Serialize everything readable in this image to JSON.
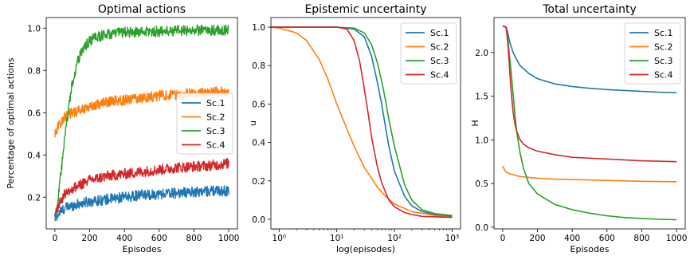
{
  "colors": {
    "Sc.1": "#1f77b4",
    "Sc.2": "#ff7f0e",
    "Sc.3": "#2ca02c",
    "Sc.4": "#d62728"
  },
  "chart_data": [
    {
      "type": "line",
      "title": "Optimal actions",
      "xlabel": "Episodes",
      "ylabel": "Percentage of optimal actions",
      "xlim": [
        -50,
        1050
      ],
      "ylim": [
        0.05,
        1.05
      ],
      "xticks": [
        0,
        200,
        400,
        600,
        800,
        1000
      ],
      "yticks": [
        0.2,
        0.4,
        0.6,
        0.8,
        1.0
      ],
      "xticklabels": [
        "0",
        "200",
        "400",
        "600",
        "800",
        "1000"
      ],
      "yticklabels": [
        "0.2",
        "0.4",
        "0.6",
        "0.8",
        "1.0"
      ],
      "legend": "center-right",
      "noisy": true,
      "series": [
        {
          "name": "Sc.1",
          "x": [
            0,
            10,
            30,
            60,
            100,
            200,
            300,
            400,
            500,
            600,
            700,
            800,
            900,
            1000
          ],
          "y": [
            0.1,
            0.11,
            0.13,
            0.15,
            0.16,
            0.18,
            0.19,
            0.2,
            0.21,
            0.215,
            0.22,
            0.225,
            0.23,
            0.23
          ]
        },
        {
          "name": "Sc.2",
          "x": [
            0,
            10,
            30,
            60,
            100,
            200,
            300,
            400,
            500,
            600,
            700,
            800,
            900,
            1000
          ],
          "y": [
            0.5,
            0.52,
            0.55,
            0.58,
            0.6,
            0.63,
            0.65,
            0.66,
            0.67,
            0.68,
            0.685,
            0.69,
            0.695,
            0.7
          ]
        },
        {
          "name": "Sc.3",
          "x": [
            0,
            20,
            40,
            60,
            80,
            100,
            130,
            160,
            200,
            250,
            300,
            400,
            600,
            800,
            1000
          ],
          "y": [
            0.1,
            0.2,
            0.35,
            0.5,
            0.63,
            0.74,
            0.84,
            0.9,
            0.94,
            0.96,
            0.97,
            0.98,
            0.985,
            0.99,
            0.99
          ]
        },
        {
          "name": "Sc.4",
          "x": [
            0,
            10,
            30,
            60,
            100,
            200,
            300,
            400,
            500,
            600,
            700,
            800,
            900,
            1000
          ],
          "y": [
            0.1,
            0.14,
            0.18,
            0.22,
            0.24,
            0.28,
            0.3,
            0.31,
            0.32,
            0.33,
            0.34,
            0.345,
            0.35,
            0.36
          ]
        }
      ]
    },
    {
      "type": "line",
      "title": "Epistemic uncertainty",
      "xlabel": "log(episodes)",
      "ylabel": "u",
      "xscale": "log",
      "xlim": [
        0.72,
        1400
      ],
      "ylim": [
        -0.05,
        1.05
      ],
      "xticks": [
        1,
        10,
        100,
        1000
      ],
      "yticks": [
        0.0,
        0.2,
        0.4,
        0.6,
        0.8,
        1.0
      ],
      "xticklabels": [
        "10⁰",
        "10¹",
        "10²",
        "10³"
      ],
      "yticklabels": [
        "0.0",
        "0.2",
        "0.4",
        "0.6",
        "0.8",
        "1.0"
      ],
      "legend": "top-right",
      "noisy": false,
      "series": [
        {
          "name": "Sc.1",
          "x": [
            0.72,
            1,
            5,
            10,
            20,
            30,
            40,
            50,
            60,
            70,
            80,
            100,
            150,
            200,
            300,
            500,
            1000
          ],
          "y": [
            1.0,
            1.0,
            1.0,
            1.0,
            0.99,
            0.95,
            0.85,
            0.72,
            0.6,
            0.48,
            0.38,
            0.25,
            0.12,
            0.07,
            0.04,
            0.025,
            0.015
          ]
        },
        {
          "name": "Sc.2",
          "x": [
            0.72,
            1,
            2,
            3,
            5,
            7,
            10,
            15,
            20,
            30,
            50,
            70,
            100,
            200,
            500,
            1000
          ],
          "y": [
            1.0,
            0.995,
            0.97,
            0.93,
            0.83,
            0.73,
            0.6,
            0.47,
            0.38,
            0.27,
            0.17,
            0.12,
            0.08,
            0.04,
            0.02,
            0.01
          ]
        },
        {
          "name": "Sc.3",
          "x": [
            0.72,
            1,
            5,
            10,
            20,
            30,
            40,
            50,
            60,
            70,
            80,
            100,
            150,
            200,
            300,
            500,
            1000
          ],
          "y": [
            1.0,
            1.0,
            1.0,
            1.0,
            0.995,
            0.97,
            0.91,
            0.82,
            0.72,
            0.62,
            0.52,
            0.38,
            0.18,
            0.1,
            0.05,
            0.03,
            0.02
          ]
        },
        {
          "name": "Sc.4",
          "x": [
            0.72,
            1,
            5,
            10,
            15,
            20,
            25,
            30,
            35,
            40,
            50,
            60,
            80,
            100,
            150,
            200,
            300,
            1000
          ],
          "y": [
            1.0,
            1.0,
            1.0,
            1.0,
            0.99,
            0.93,
            0.82,
            0.68,
            0.55,
            0.43,
            0.28,
            0.19,
            0.1,
            0.065,
            0.035,
            0.025,
            0.015,
            0.01
          ]
        }
      ]
    },
    {
      "type": "line",
      "title": "Total uncertainty",
      "xlabel": "Episodes",
      "ylabel": "H",
      "xlim": [
        -50,
        1050
      ],
      "ylim": [
        -0.02,
        2.4
      ],
      "xticks": [
        0,
        200,
        400,
        600,
        800,
        1000
      ],
      "yticks": [
        0.0,
        0.5,
        1.0,
        1.5,
        2.0
      ],
      "xticklabels": [
        "0",
        "200",
        "400",
        "600",
        "800",
        "1000"
      ],
      "yticklabels": [
        "0.0",
        "0.5",
        "1.0",
        "1.5",
        "2.0"
      ],
      "legend": "top-right",
      "noisy": false,
      "series": [
        {
          "name": "Sc.1",
          "x": [
            0,
            10,
            20,
            30,
            40,
            60,
            80,
            100,
            150,
            200,
            300,
            400,
            500,
            600,
            700,
            800,
            900,
            1000
          ],
          "y": [
            2.3,
            2.3,
            2.29,
            2.22,
            2.12,
            2.0,
            1.92,
            1.85,
            1.76,
            1.7,
            1.64,
            1.61,
            1.59,
            1.575,
            1.565,
            1.555,
            1.545,
            1.54
          ]
        },
        {
          "name": "Sc.2",
          "x": [
            0,
            10,
            20,
            40,
            60,
            100,
            200,
            300,
            400,
            600,
            800,
            1000
          ],
          "y": [
            0.7,
            0.66,
            0.63,
            0.61,
            0.6,
            0.58,
            0.56,
            0.55,
            0.545,
            0.535,
            0.525,
            0.52
          ]
        },
        {
          "name": "Sc.3",
          "x": [
            0,
            10,
            20,
            30,
            40,
            50,
            60,
            70,
            80,
            100,
            120,
            150,
            200,
            300,
            400,
            500,
            600,
            700,
            800,
            900,
            1000
          ],
          "y": [
            2.3,
            2.3,
            2.28,
            2.15,
            1.95,
            1.75,
            1.52,
            1.3,
            1.1,
            0.85,
            0.67,
            0.5,
            0.38,
            0.26,
            0.2,
            0.16,
            0.13,
            0.11,
            0.1,
            0.09,
            0.085
          ]
        },
        {
          "name": "Sc.4",
          "x": [
            0,
            10,
            20,
            30,
            40,
            50,
            60,
            70,
            80,
            100,
            120,
            150,
            200,
            300,
            400,
            500,
            600,
            800,
            1000
          ],
          "y": [
            2.3,
            2.3,
            2.28,
            2.1,
            1.8,
            1.52,
            1.32,
            1.18,
            1.1,
            1.0,
            0.95,
            0.91,
            0.87,
            0.83,
            0.8,
            0.79,
            0.78,
            0.76,
            0.75
          ]
        }
      ]
    }
  ]
}
